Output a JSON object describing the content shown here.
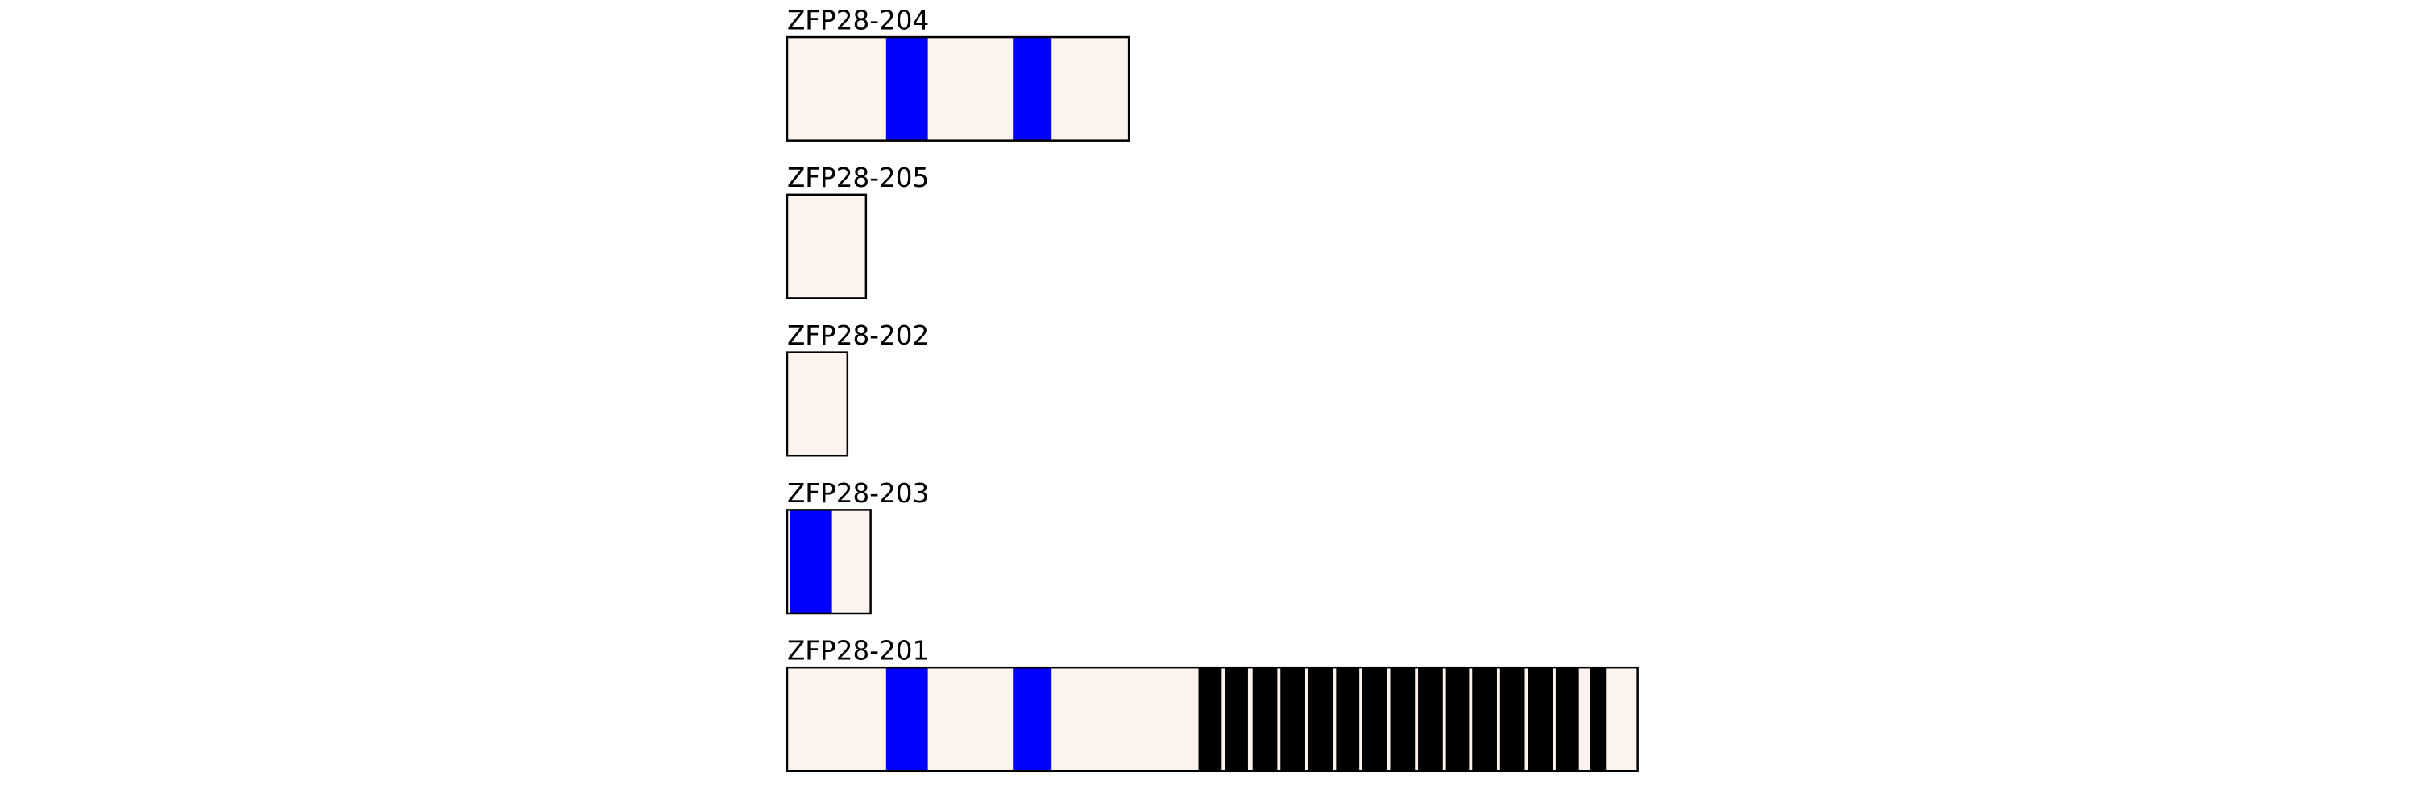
{
  "tracks": [
    {
      "label": "ZFP28-204"
    },
    {
      "label": "ZFP28-205"
    },
    {
      "label": "ZFP28-202"
    },
    {
      "label": "ZFP28-203"
    },
    {
      "label": "ZFP28-201"
    }
  ]
}
